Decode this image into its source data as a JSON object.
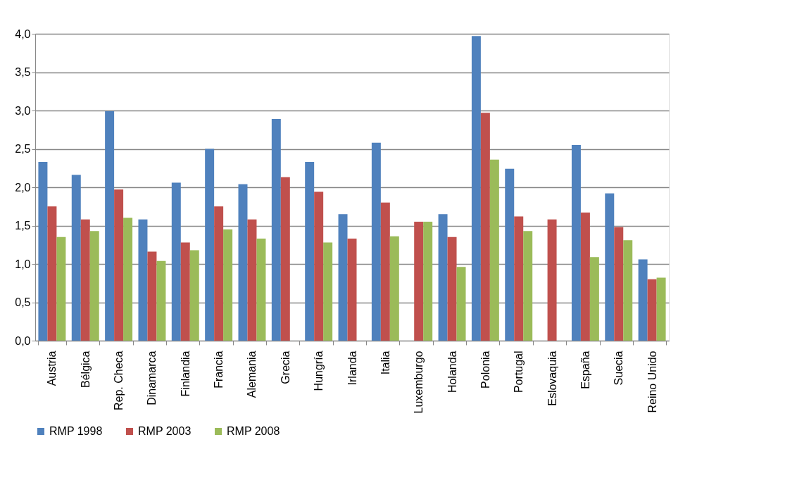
{
  "chart_data": {
    "type": "bar",
    "categories": [
      "Austria",
      "Bélgica",
      "Rep. Checa",
      "Dinamarca",
      "Finlandia",
      "Francia",
      "Alemania",
      "Grecia",
      "Hungría",
      "Irlanda",
      "Italia",
      "Luxemburgo",
      "Holanda",
      "Polonia",
      "Portugal",
      "Eslovaquia",
      "España",
      "Suecia",
      "Reino Unido"
    ],
    "series": [
      {
        "name": "RMP 1998",
        "color": "#4f81bd",
        "values": [
          2.33,
          2.16,
          2.99,
          1.58,
          2.06,
          2.5,
          2.04,
          2.89,
          2.33,
          1.65,
          2.58,
          null,
          1.65,
          3.97,
          2.24,
          null,
          2.55,
          1.92,
          1.06
        ]
      },
      {
        "name": "RMP 2003",
        "color": "#c0504d",
        "values": [
          1.75,
          1.58,
          1.97,
          1.16,
          1.28,
          1.75,
          1.58,
          2.13,
          1.94,
          1.33,
          1.8,
          1.55,
          1.35,
          2.97,
          1.62,
          1.58,
          1.67,
          1.48,
          0.8
        ]
      },
      {
        "name": "RMP 2008",
        "color": "#9bbb59",
        "values": [
          1.35,
          1.43,
          1.6,
          1.04,
          1.18,
          1.45,
          1.33,
          null,
          1.28,
          null,
          1.36,
          1.55,
          0.96,
          2.36,
          1.43,
          null,
          1.09,
          1.31,
          0.82
        ]
      }
    ],
    "ylim": [
      0,
      4
    ],
    "yticks": [
      {
        "value": 0,
        "label": "0,0"
      },
      {
        "value": 0.5,
        "label": "0,5"
      },
      {
        "value": 1,
        "label": "1,0"
      },
      {
        "value": 1.5,
        "label": "1,5"
      },
      {
        "value": 2,
        "label": "2,0"
      },
      {
        "value": 2.5,
        "label": "2,5"
      },
      {
        "value": 3,
        "label": "3,0"
      },
      {
        "value": 3.5,
        "label": "3,5"
      },
      {
        "value": 4,
        "label": "4,0"
      }
    ],
    "grid": "y",
    "legend": "bottom"
  }
}
